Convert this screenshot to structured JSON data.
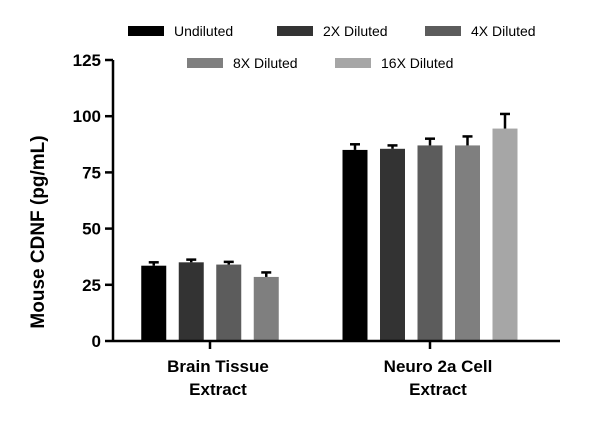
{
  "chart_data": {
    "type": "bar",
    "title": "",
    "xlabel": "",
    "ylabel": "Mouse CDNF (pg/mL)",
    "ylim": [
      0,
      125
    ],
    "yticks": [
      0,
      25,
      50,
      75,
      100,
      125
    ],
    "grid": false,
    "legend_position": "top",
    "categories": [
      {
        "line1": "Brain Tissue",
        "line2": "Extract"
      },
      {
        "line1": "Neuro 2a Cell",
        "line2": "Extract"
      }
    ],
    "series": [
      {
        "name": "Undiluted",
        "color": "#000000",
        "values": [
          33.5,
          85.0
        ],
        "errors": [
          1.5,
          2.5
        ]
      },
      {
        "name": "2X Diluted",
        "color": "#333333",
        "values": [
          35.0,
          85.5
        ],
        "errors": [
          1.2,
          1.5
        ]
      },
      {
        "name": "4X Diluted",
        "color": "#5c5c5c",
        "values": [
          34.0,
          87.0
        ],
        "errors": [
          1.2,
          3.0
        ]
      },
      {
        "name": "8X Diluted",
        "color": "#7f7f7f",
        "values": [
          28.5,
          87.0
        ],
        "errors": [
          2.0,
          4.0
        ]
      },
      {
        "name": "16X Diluted",
        "color": "#a6a6a6",
        "values": [
          null,
          94.5
        ],
        "errors": [
          null,
          6.5
        ]
      }
    ]
  }
}
